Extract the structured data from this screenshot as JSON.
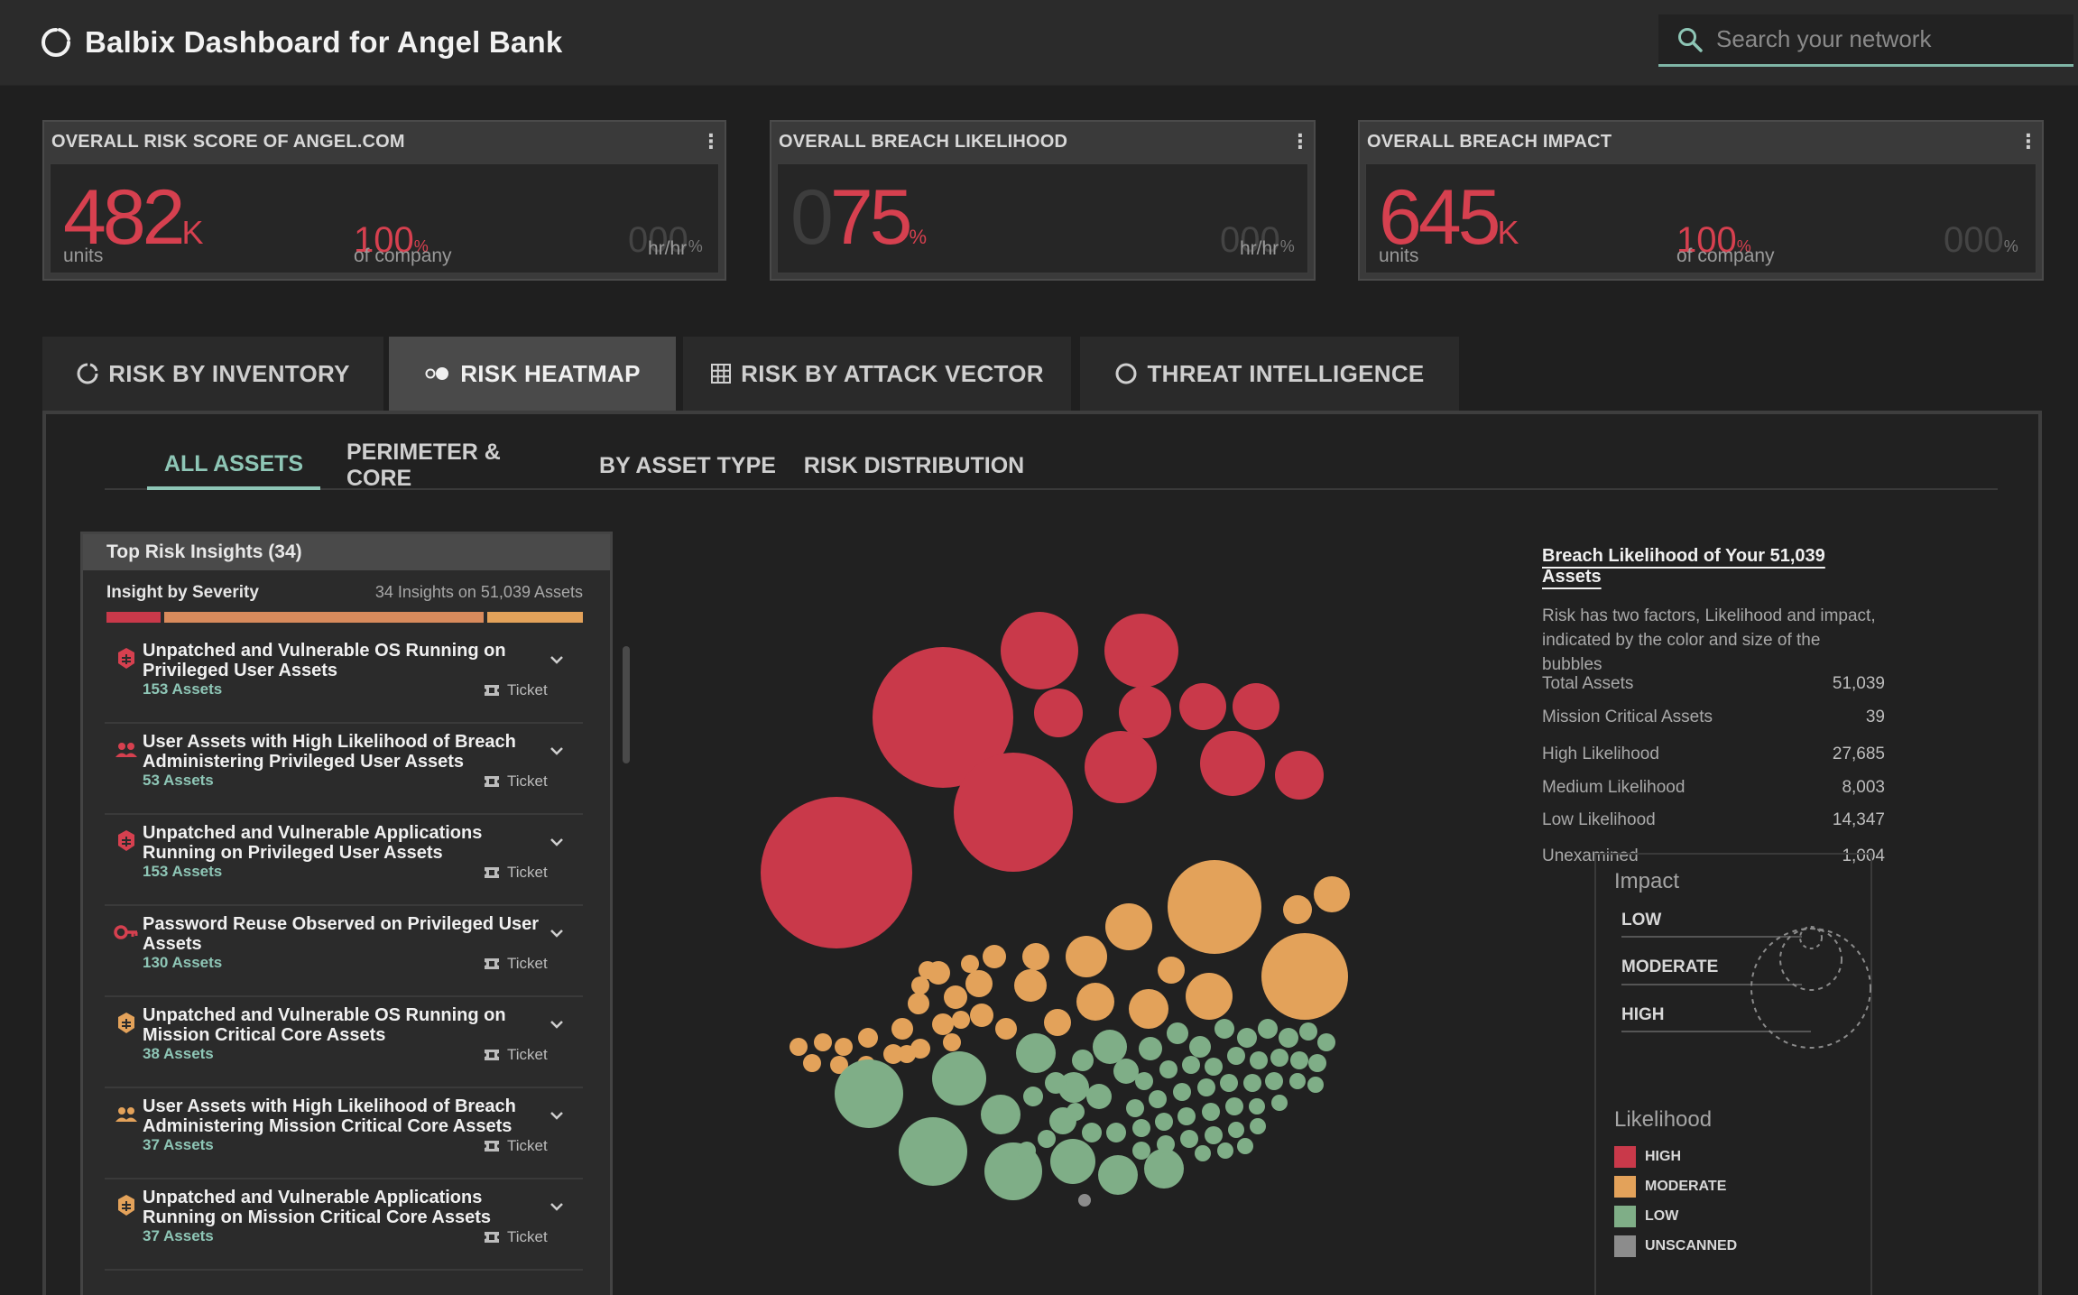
{
  "app": {
    "title": "Balbix Dashboard for Angel Bank",
    "search_placeholder": "Search your network",
    "brand_icon": "circle-refresh-icon",
    "accent": "#8ec6b6"
  },
  "kpis": [
    {
      "title": "OVERALL RISK SCORE OF ANGEL.COM",
      "value": "482",
      "value_suffix": "K",
      "value_unit": "units",
      "secondary_value": "100",
      "secondary_suffix": "%",
      "secondary_unit": "of company",
      "rate_value": "000",
      "rate_suffix": "%",
      "rate_unit": "hr/hr"
    },
    {
      "title": "OVERALL BREACH LIKELIHOOD",
      "ghost_prefix": "0",
      "value": "75",
      "value_suffix": "%",
      "rate_value": "000",
      "rate_suffix": "%",
      "rate_unit": "hr/hr"
    },
    {
      "title": "OVERALL BREACH IMPACT",
      "value": "645",
      "value_suffix": "K",
      "value_unit": "units",
      "secondary_value": "100",
      "secondary_suffix": "%",
      "secondary_unit": "of company",
      "rate_value": "000",
      "rate_suffix": "%"
    }
  ],
  "main_tabs": [
    {
      "label": "RISK BY INVENTORY",
      "icon": "circle-refresh-icon",
      "active": false
    },
    {
      "label": "RISK HEATMAP",
      "icon": "bubbles-icon",
      "active": true
    },
    {
      "label": "RISK BY ATTACK VECTOR",
      "icon": "grid-icon",
      "active": false
    },
    {
      "label": "THREAT INTELLIGENCE",
      "icon": "circle-icon",
      "active": false
    }
  ],
  "sub_tabs": [
    {
      "label": "ALL ASSETS",
      "active": true
    },
    {
      "label": "PERIMETER & CORE",
      "active": false
    },
    {
      "label": "BY ASSET TYPE",
      "active": false
    },
    {
      "label": "RISK DISTRIBUTION",
      "active": false
    }
  ],
  "insights": {
    "title": "Top Risk Insights (34)",
    "severity_title": "Insight by Severity",
    "severity_count": "34 Insights on 51,039 Assets",
    "severity_colors": [
      "#c9394a",
      "#d98b5c",
      "#e3a25a"
    ],
    "items": [
      {
        "icon": "bug-icon",
        "icon_color": "#d6404f",
        "title": "Unpatched and Vulnerable OS Running on Privileged User Assets",
        "count": "153 Assets",
        "ticket": "Ticket"
      },
      {
        "icon": "users-icon",
        "icon_color": "#d6404f",
        "title": "User Assets with High Likelihood of Breach Administering Privileged User Assets",
        "count": "53 Assets",
        "ticket": "Ticket"
      },
      {
        "icon": "bug-icon",
        "icon_color": "#d6404f",
        "title": "Unpatched and Vulnerable Applications Running on Privileged User Assets",
        "count": "153 Assets",
        "ticket": "Ticket"
      },
      {
        "icon": "key-icon",
        "icon_color": "#d6404f",
        "title": "Password Reuse Observed on Privileged User Assets",
        "count": "130 Assets",
        "ticket": "Ticket"
      },
      {
        "icon": "bug-icon",
        "icon_color": "#e3a25a",
        "title": "Unpatched and Vulnerable OS Running on Mission Critical Core Assets",
        "count": "38 Assets",
        "ticket": "Ticket"
      },
      {
        "icon": "users-icon",
        "icon_color": "#e3a25a",
        "title": "User Assets with High Likelihood of Breach Administering Mission Critical Core Assets",
        "count": "37 Assets",
        "ticket": "Ticket"
      },
      {
        "icon": "bug-icon",
        "icon_color": "#e3a25a",
        "title": "Unpatched and Vulnerable Applications Running on Mission Critical Core Assets",
        "count": "37 Assets",
        "ticket": "Ticket"
      }
    ]
  },
  "breach_info": {
    "title": "Breach Likelihood of Your 51,039 Assets",
    "description": "Risk has two factors, Likelihood and impact, indicated by the color and size of the bubbles",
    "stats": [
      {
        "label": "Total Assets",
        "value": "51,039"
      },
      {
        "label": "Mission Critical Assets",
        "value": "39"
      },
      {
        "label": "High Likelihood",
        "value": "27,685"
      },
      {
        "label": "Medium Likelihood",
        "value": "8,003"
      },
      {
        "label": "Low Likelihood",
        "value": "14,347"
      },
      {
        "label": "Unexamined",
        "value": "1,004"
      }
    ]
  },
  "legend": {
    "impact_title": "Impact",
    "impact_levels": [
      "LOW",
      "MODERATE",
      "HIGH"
    ],
    "likelihood_title": "Likelihood",
    "likelihood_levels": [
      {
        "label": "HIGH",
        "color": "#c9394a"
      },
      {
        "label": "MODERATE",
        "color": "#e3a25a"
      },
      {
        "label": "LOW",
        "color": "#7fae87"
      },
      {
        "label": "UNSCANNED",
        "color": "#8c8c8c"
      }
    ]
  },
  "chart_data": {
    "type": "bubble",
    "color_key": {
      "high": "#c9394a",
      "moderate": "#e3a25a",
      "low": "#7fae87",
      "unscanned": "#8c8c8c"
    }
  }
}
